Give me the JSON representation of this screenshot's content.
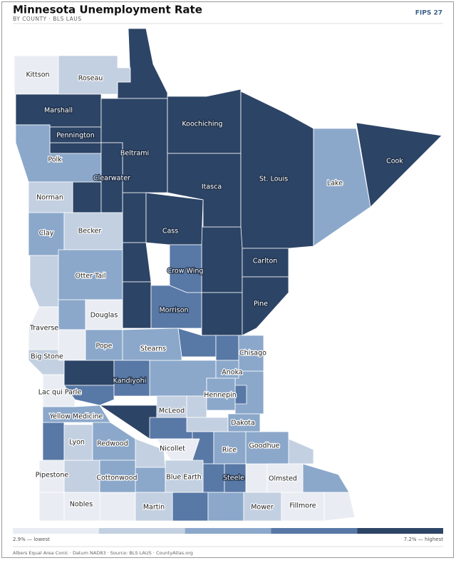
{
  "header": {
    "title": "Minnesota Unemployment Rate",
    "subtitle": "BY COUNTY · BLS LAUS",
    "badge": "FIPS 27"
  },
  "counties": [
    {
      "name": "Kittson",
      "color": "#e9edf3"
    },
    {
      "name": "Roseau",
      "color": "#c3d0e1"
    },
    {
      "name": "Marshall",
      "color": "#2c4466"
    },
    {
      "name": "Pennington",
      "color": "#2c4466"
    },
    {
      "name": "Polk",
      "color": "#8ba8cb"
    },
    {
      "name": "Beltrami",
      "color": "#2c4466"
    },
    {
      "name": "Clearwater",
      "color": "#2c4466"
    },
    {
      "name": "Koochiching",
      "color": "#2c4466"
    },
    {
      "name": "Norman",
      "color": "#c3d0e1"
    },
    {
      "name": "Itasca",
      "color": "#2c4466"
    },
    {
      "name": "St. Louis",
      "color": "#2c4466"
    },
    {
      "name": "Lake",
      "color": "#8ba8cb"
    },
    {
      "name": "Cook",
      "color": "#2c4466"
    },
    {
      "name": "Clay",
      "color": "#8ba8cb"
    },
    {
      "name": "Becker",
      "color": "#c3d0e1"
    },
    {
      "name": "Cass",
      "color": "#2c4466"
    },
    {
      "name": "Crow Wing",
      "color": "#5878a6"
    },
    {
      "name": "Carlton",
      "color": "#2c4466"
    },
    {
      "name": "Otter Tail",
      "color": "#8ba8cb"
    },
    {
      "name": "Pine",
      "color": "#2c4466"
    },
    {
      "name": "Douglas",
      "color": "#e9edf3"
    },
    {
      "name": "Morrison",
      "color": "#5878a6"
    },
    {
      "name": "Traverse",
      "color": "#e9edf3"
    },
    {
      "name": "Pope",
      "color": "#8ba8cb"
    },
    {
      "name": "Stearns",
      "color": "#8ba8cb"
    },
    {
      "name": "Chisago",
      "color": "#8ba8cb"
    },
    {
      "name": "Big Stone",
      "color": "#c3d0e1"
    },
    {
      "name": "Anoka",
      "color": "#8ba8cb"
    },
    {
      "name": "Kandiyohi",
      "color": "#5878a6"
    },
    {
      "name": "Hennepin",
      "color": "#8ba8cb"
    },
    {
      "name": "Lac qui Parle",
      "color": "#e9edf3"
    },
    {
      "name": "McLeod",
      "color": "#c3d0e1"
    },
    {
      "name": "Yellow Medicine",
      "color": "#8ba8cb"
    },
    {
      "name": "Dakota",
      "color": "#8ba8cb"
    },
    {
      "name": "Lyon",
      "color": "#c3d0e1"
    },
    {
      "name": "Redwood",
      "color": "#8ba8cb"
    },
    {
      "name": "Nicollet",
      "color": "#e9edf3"
    },
    {
      "name": "Rice",
      "color": "#8ba8cb"
    },
    {
      "name": "Goodhue",
      "color": "#8ba8cb"
    },
    {
      "name": "Pipestone",
      "color": "#e9edf3"
    },
    {
      "name": "Cottonwood",
      "color": "#8ba8cb"
    },
    {
      "name": "Blue Earth",
      "color": "#c3d0e1"
    },
    {
      "name": "Steele",
      "color": "#5878a6"
    },
    {
      "name": "Olmsted",
      "color": "#e9edf3"
    },
    {
      "name": "Nobles",
      "color": "#e9edf3"
    },
    {
      "name": "Martin",
      "color": "#c3d0e1"
    },
    {
      "name": "Mower",
      "color": "#c3d0e1"
    },
    {
      "name": "Fillmore",
      "color": "#e9edf3"
    }
  ],
  "legend": {
    "colors": [
      "#e9edf3",
      "#c3d0e1",
      "#8ba8cb",
      "#5878a6",
      "#2c4466"
    ],
    "min_label": "2.9% — lowest",
    "max_label": "7.2% — highest"
  },
  "footer": "Albers Equal Area Conic · Datum NAD83 · Source: BLS LAUS · CountyAtlas.org"
}
